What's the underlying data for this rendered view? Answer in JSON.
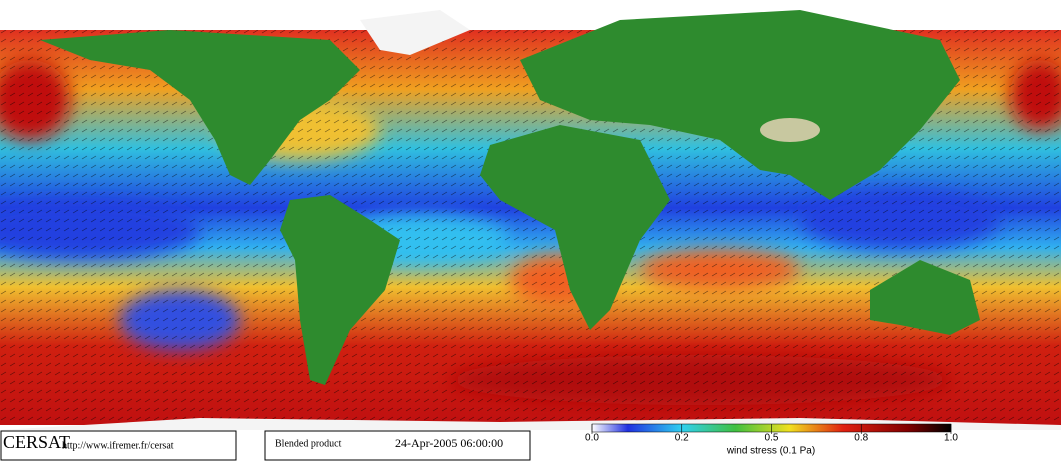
{
  "footer": {
    "logo": "CERSAT",
    "url": "http://www.ifremer.fr/cersat",
    "product": "Blended product",
    "date": "24-Apr-2005 06:00:00"
  },
  "colorbar": {
    "label": "wind stress (0.1 Pa)",
    "ticks": [
      {
        "value": 0,
        "label": "0.0"
      },
      0.2,
      0.5,
      0.8,
      {
        "value": 1,
        "label": "1.0"
      }
    ]
  }
}
